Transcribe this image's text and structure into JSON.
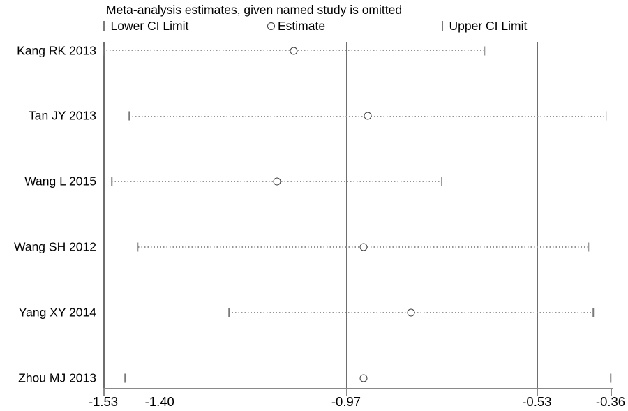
{
  "figure_title": "Meta-analysis estimates, given named study is omitted",
  "chart_data": {
    "type": "scatter",
    "subtype": "leave-one-out-forest-plot",
    "title": "Meta-analysis estimates, given named study is omitted",
    "legend": [
      "Lower CI Limit",
      "Estimate",
      "Upper CI Limit"
    ],
    "legend_position": "top",
    "studies": [
      {
        "label": "Kang RK 2013",
        "lower": -1.53,
        "estimate": -1.09,
        "upper": -0.65
      },
      {
        "label": "Tan JY 2013",
        "lower": -1.47,
        "estimate": -0.92,
        "upper": -0.37
      },
      {
        "label": "Wang L 2015",
        "lower": -1.51,
        "estimate": -1.13,
        "upper": -0.75
      },
      {
        "label": "Wang SH 2012",
        "lower": -1.45,
        "estimate": -0.93,
        "upper": -0.41
      },
      {
        "label": "Yang XY 2014",
        "lower": -1.24,
        "estimate": -0.82,
        "upper": -0.4
      },
      {
        "label": "Zhou MJ 2013",
        "lower": -1.48,
        "estimate": -0.93,
        "upper": -0.36
      }
    ],
    "reference_lines": [
      {
        "value": -1.4,
        "meaning": "overall lower CI limit"
      },
      {
        "value": -0.97,
        "meaning": "overall estimate"
      },
      {
        "value": -0.53,
        "meaning": "overall upper CI limit"
      }
    ],
    "x_tick_labels": [
      "-1.53",
      "-1.40",
      "-0.97",
      "-0.53",
      "-0.36"
    ],
    "x_tick_values": [
      -1.53,
      -1.4,
      -0.97,
      -0.53,
      -0.36
    ],
    "xlim": [
      -1.53,
      -0.36
    ],
    "grid": "vertical reference lines only",
    "colors": {
      "background": "#ffffff",
      "text": "#000000",
      "grid_line": "#6e6e6e",
      "axis_line": "#8a8a8a",
      "dotted_ci_line": "#949494",
      "ci_tick": "#7a7a7a",
      "estimate_marker_stroke": "#3d3d3d"
    }
  }
}
